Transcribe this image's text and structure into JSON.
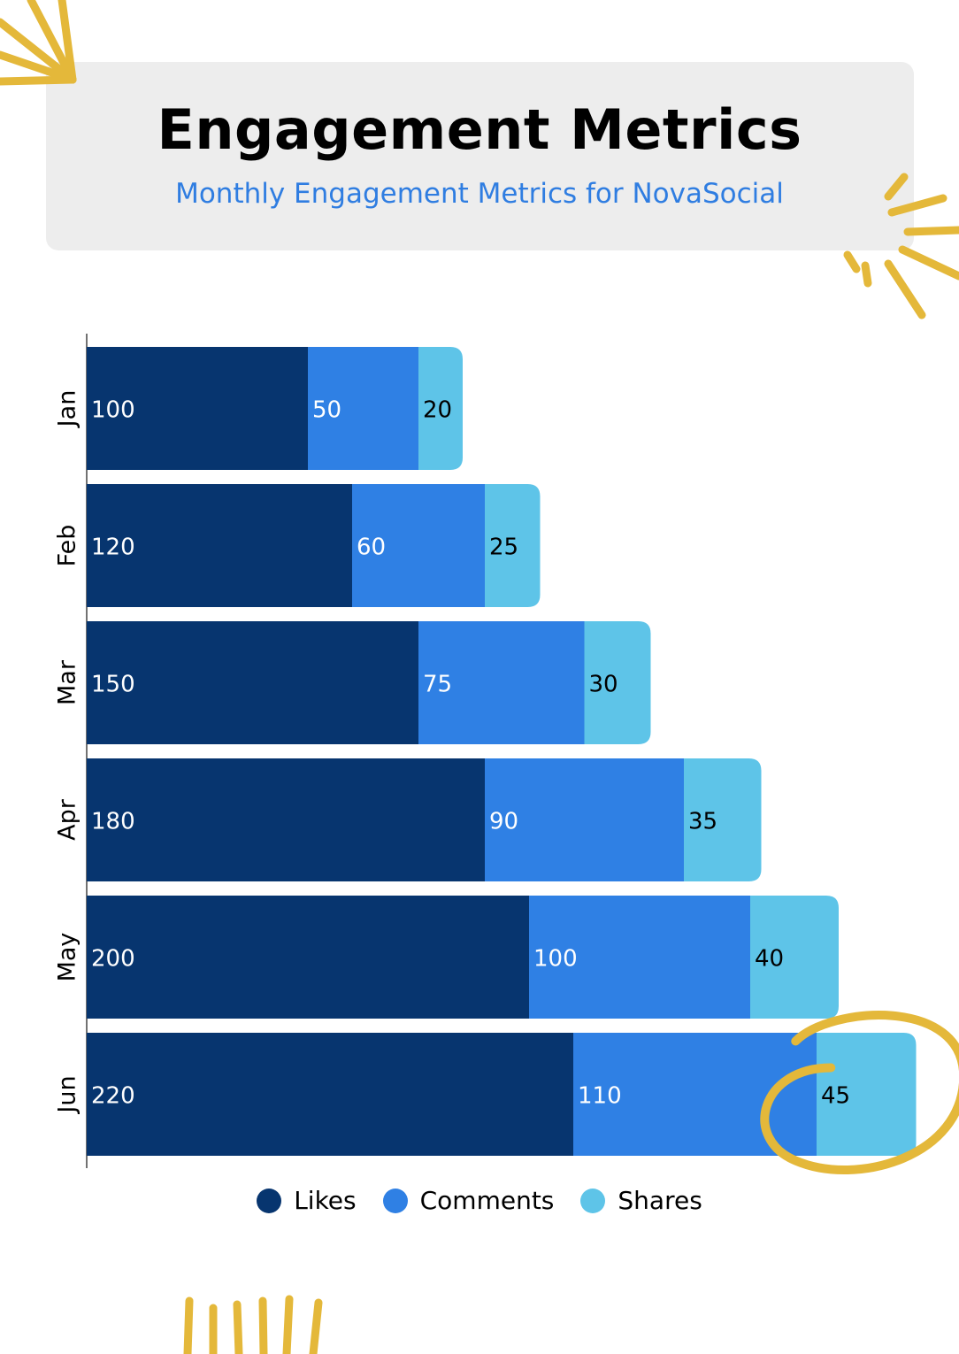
{
  "title": "Engagement Metrics",
  "subtitle": "Monthly Engagement Metrics for NovaSocial",
  "colors": {
    "likes": "#07356f",
    "comments": "#2f80e4",
    "shares": "#5ec4e8",
    "header_bg": "#ededed",
    "accent": "#e4b83a",
    "subtitle": "#2f7de1"
  },
  "legend": [
    {
      "label": "Likes",
      "color": "#07356f"
    },
    {
      "label": "Comments",
      "color": "#2f80e4"
    },
    {
      "label": "Shares",
      "color": "#5ec4e8"
    }
  ],
  "chart_data": {
    "type": "bar",
    "orientation": "horizontal",
    "stacked": true,
    "categories": [
      "Jan",
      "Feb",
      "Mar",
      "Apr",
      "May",
      "Jun"
    ],
    "series": [
      {
        "name": "Likes",
        "values": [
          100,
          120,
          150,
          180,
          200,
          220
        ]
      },
      {
        "name": "Comments",
        "values": [
          50,
          60,
          75,
          90,
          100,
          110
        ]
      },
      {
        "name": "Shares",
        "values": [
          20,
          25,
          30,
          35,
          40,
          45
        ]
      }
    ],
    "xlim": [
      0,
      375
    ],
    "data_labels": true,
    "grid": false,
    "legend_position": "bottom",
    "highlight": {
      "category": "Jun",
      "series": "Shares"
    }
  }
}
